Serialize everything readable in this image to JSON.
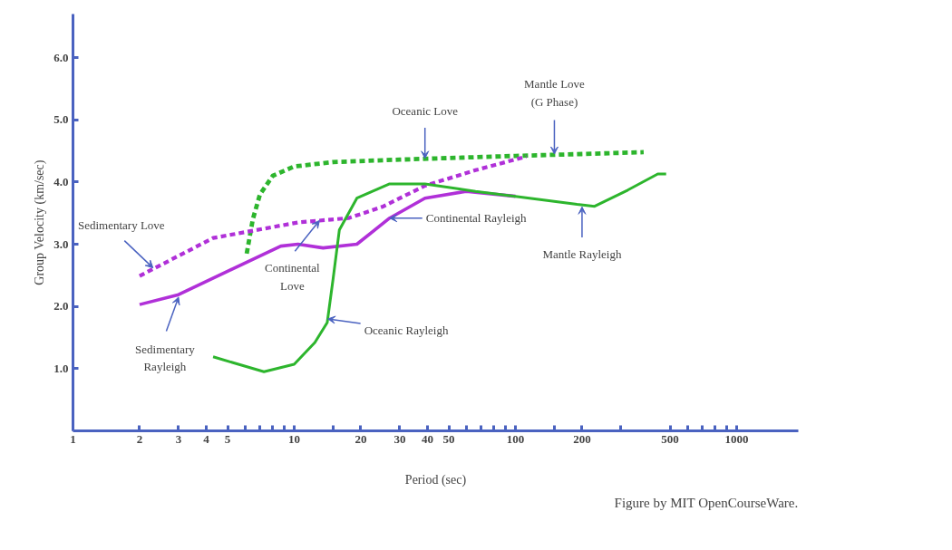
{
  "chart_data": {
    "type": "line",
    "xlabel": "Period (sec)",
    "ylabel": "Group Velocity (km/sec)",
    "log": "x",
    "grid": false,
    "marker": "none",
    "xlim": [
      1,
      1900
    ],
    "ylim": [
      0,
      6.7
    ],
    "xticks": [
      1,
      2,
      3,
      4,
      5,
      {
        "value": 6,
        "label": null
      },
      {
        "value": 7,
        "label": null
      },
      {
        "value": 8,
        "label": null
      },
      {
        "value": 9,
        "label": null
      },
      10,
      {
        "value": 15,
        "label": null
      },
      20,
      30,
      40,
      50,
      {
        "value": 60,
        "label": null
      },
      {
        "value": 70,
        "label": null
      },
      {
        "value": 80,
        "label": null
      },
      {
        "value": 90,
        "label": null
      },
      100,
      {
        "value": 150,
        "label": null
      },
      200,
      {
        "value": 300,
        "label": null
      },
      500,
      {
        "value": 600,
        "label": null
      },
      {
        "value": 700,
        "label": null
      },
      {
        "value": 800,
        "label": null
      },
      {
        "value": 900,
        "label": null
      },
      1000
    ],
    "yticks": [
      {
        "value": 1,
        "label": "1.0"
      },
      {
        "value": 2,
        "label": "2.0"
      },
      {
        "value": 3,
        "label": "3.0"
      },
      {
        "value": 4,
        "label": "4.0"
      },
      {
        "value": 5,
        "label": "5.0"
      },
      {
        "value": 6,
        "label": "6.0"
      }
    ],
    "series": [
      {
        "color": "#2db52d",
        "line_style": "dashed",
        "x": [
          6.1,
          6.5,
          7.0,
          8,
          10,
          15,
          30,
          100,
          200,
          380
        ],
        "values": [
          2.85,
          3.4,
          3.8,
          4.1,
          4.25,
          4.32,
          4.36,
          4.42,
          4.45,
          4.48
        ]
      },
      {
        "color": "#b030d8",
        "line_style": "dashed",
        "x": [
          2.0,
          4.3,
          10.4,
          17.6,
          25,
          39,
          66,
          112
        ],
        "values": [
          2.49,
          3.1,
          3.35,
          3.42,
          3.6,
          3.94,
          4.19,
          4.41
        ]
      },
      {
        "color": "#b030d8",
        "line_style": "solid",
        "x": [
          2.0,
          3.0,
          5.1,
          8.7,
          10.4,
          13.5,
          19.2,
          27,
          39,
          60,
          100
        ],
        "values": [
          2.03,
          2.19,
          2.58,
          2.97,
          3.0,
          2.94,
          3.0,
          3.42,
          3.74,
          3.85,
          3.77
        ]
      },
      {
        "color": "#2db52d",
        "line_style": "solid",
        "x": [
          4.3,
          7.3,
          10,
          12.4,
          14.1,
          15,
          16,
          19.2,
          27,
          39,
          66,
          100,
          190,
          228,
          322,
          440,
          480
        ],
        "values": [
          1.19,
          0.95,
          1.07,
          1.42,
          1.74,
          2.45,
          3.23,
          3.74,
          3.97,
          3.97,
          3.85,
          3.77,
          3.64,
          3.61,
          3.87,
          4.13,
          4.13
        ]
      }
    ],
    "annotations": [
      {
        "text": "Oceanic Love",
        "x": 39,
        "y": 4.38
      },
      {
        "text": "Mantle Love\n(G Phase)",
        "x": 150,
        "y": 4.45
      },
      {
        "text": "Sedimentary Love",
        "x": 2.3,
        "y": 2.62
      },
      {
        "text": "Continental\nLove",
        "x": 13,
        "y": 3.38
      },
      {
        "text": "Continental Rayleigh",
        "x": 27,
        "y": 3.42
      },
      {
        "text": "Mantle Rayleigh",
        "x": 200,
        "y": 3.6
      },
      {
        "text": "Sedimentary\nRayleigh",
        "x": 3,
        "y": 2.15
      },
      {
        "text": "Oceanic Rayleigh",
        "x": 14.2,
        "y": 1.8
      },
      "Figure by MIT OpenCourseWare."
    ]
  }
}
